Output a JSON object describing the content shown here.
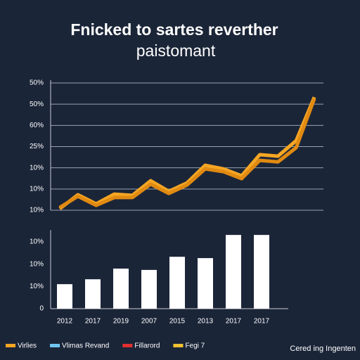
{
  "title": [
    "Fnicked to sartes reverther",
    "paistomant"
  ],
  "chart_data": [
    {
      "type": "line",
      "categories": [
        null,
        null,
        null,
        null,
        null,
        null,
        null,
        null,
        null,
        null,
        null,
        null,
        null,
        null,
        null
      ],
      "series": [
        {
          "color": "#f5a623",
          "values": [
            0.07,
            0.73,
            0.3,
            0.76,
            0.7,
            1.39,
            0.89,
            1.29,
            2.12,
            1.95,
            1.62,
            2.62,
            2.55,
            3.28,
            5.33
          ]
        },
        {
          "color": "#e08a12",
          "values": [
            0.13,
            0.66,
            0.23,
            0.6,
            0.6,
            1.23,
            0.79,
            1.19,
            1.95,
            1.82,
            1.49,
            2.35,
            2.28,
            2.95,
            5.26
          ]
        }
      ],
      "ylim": [
        0,
        6
      ],
      "yticks": [
        {
          "value": 0,
          "label": "10%"
        },
        {
          "value": 1,
          "label": "10%"
        },
        {
          "value": 2,
          "label": "10%"
        },
        {
          "value": 3,
          "label": "25%"
        },
        {
          "value": 4,
          "label": "60%"
        },
        {
          "value": 5,
          "label": "50%"
        },
        {
          "value": 6,
          "label": "50%"
        }
      ],
      "grid": true
    },
    {
      "type": "bar",
      "categories": [
        "2012",
        "2017",
        "2019",
        "2007",
        "2015",
        "2013",
        "2017",
        "2017"
      ],
      "values": [
        1.1,
        1.32,
        1.8,
        1.74,
        2.33,
        2.27,
        3.31,
        3.31
      ],
      "color": "#ffffff",
      "ylim": [
        0,
        3.4
      ],
      "yticks": [
        0,
        {
          "value": 1,
          "label": "10%"
        },
        {
          "value": 2,
          "label": "10%"
        },
        {
          "value": 3,
          "label": "10%"
        }
      ],
      "grid": false
    }
  ],
  "legend": [
    {
      "label": "Virlies",
      "color": "#f5a623"
    },
    {
      "label": "Vlimas Revand",
      "color": "#6ec6f0"
    },
    {
      "label": "Fillarord",
      "color": "#e03030"
    },
    {
      "label": "Fegi 7",
      "color": "#f2c230"
    }
  ],
  "footer": "Cered ing Ingenten"
}
